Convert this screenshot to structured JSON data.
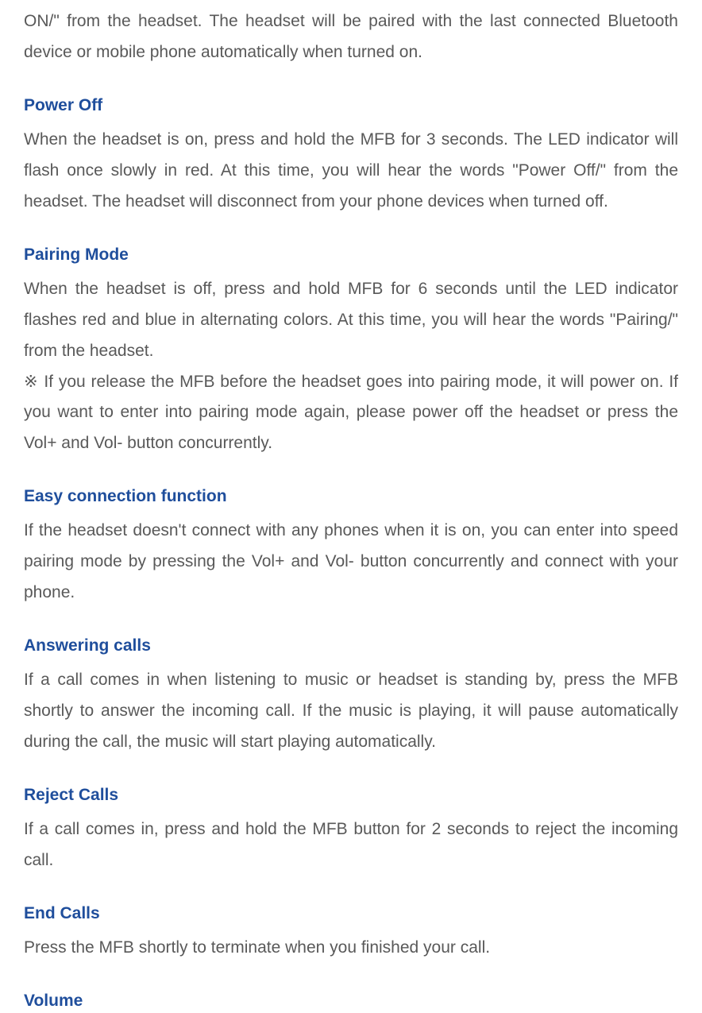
{
  "intro": {
    "text": "ON/\" from the headset. The headset will be paired with the last connected Bluetooth device or mobile phone automatically when turned on."
  },
  "sections": {
    "powerOff": {
      "heading": "Power Off",
      "body": "When the headset is on, press and hold the MFB for 3 seconds. The LED indicator will flash once slowly in red. At this time, you will hear the words \"Power Off/\" from the headset. The headset will disconnect from your phone devices when turned off."
    },
    "pairingMode": {
      "heading": "Pairing Mode",
      "body": "When the headset is off, press and hold MFB for 6 seconds until the LED indicator flashes red and blue in alternating colors. At this time, you will hear the words \"Pairing/\" from the headset.",
      "note": "※ If you release the MFB before the headset goes into pairing mode, it will power on. If you want to enter into pairing mode again, please power off the headset or press the Vol+ and Vol- button concurrently."
    },
    "easyConnection": {
      "heading": "Easy connection function",
      "body": "If the headset doesn't connect with any phones when it is on, you can enter into speed pairing mode by pressing the Vol+ and Vol- button concurrently and connect with your phone."
    },
    "answeringCalls": {
      "heading": "Answering calls",
      "body": "If a call comes in when listening to music or headset is standing by, press the MFB shortly to answer the incoming call. If the music is playing, it will pause automatically during the call, the music will start playing automatically."
    },
    "rejectCalls": {
      "heading": "Reject Calls",
      "body": "If a call comes in, press and hold the MFB button for 2 seconds to reject the incoming call."
    },
    "endCalls": {
      "heading": "End Calls",
      "body": "Press the MFB shortly to terminate when you finished your call."
    },
    "volume": {
      "heading": "Volume"
    }
  },
  "style": {
    "headingColor": "#1f4e9c",
    "bodyColor": "#595959",
    "backgroundColor": "#ffffff",
    "fontSize": 21,
    "lineHeight": 1.85
  }
}
